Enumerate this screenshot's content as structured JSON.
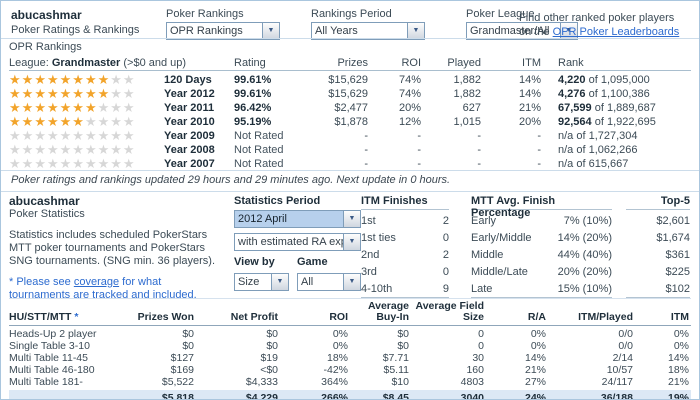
{
  "colors": {
    "star_gold": "#F2A42B",
    "star_empty": "#D7D7D7",
    "link_blue": "#2D6BCF",
    "totals_row_bg": "#DCE8F5",
    "selected_dropdown_bg": "#B7D0EC"
  },
  "header": {
    "username": "abucashmar",
    "subtitle": "Poker Ratings & Rankings",
    "filters": [
      {
        "label": "Poker Rankings",
        "value": "OPR Rankings"
      },
      {
        "label": "Rankings Period",
        "value": "All Years"
      },
      {
        "label": "Poker League",
        "value": "Grandmaster/All"
      }
    ],
    "find_line1": "Find other ranked poker players",
    "find_line2_prefix": "on the",
    "find_link": "OPR Poker Leaderboards"
  },
  "rankings": {
    "title": "OPR Rankings",
    "league_label": "League:",
    "league_name": "Grandmaster",
    "league_range": "(>$0 and up)",
    "columns": {
      "rating": "Rating",
      "prizes": "Prizes",
      "roi": "ROI",
      "played": "Played",
      "itm": "ITM",
      "rank": "Rank"
    },
    "rows": [
      {
        "stars": 8,
        "period": "120 Days",
        "rating": "99.61%",
        "prizes": "$15,629",
        "roi": "74%",
        "played": "1,882",
        "itm": "14%",
        "rank_num": "4,220",
        "rank_rest": "of 1,095,000"
      },
      {
        "stars": 8,
        "period": "Year 2012",
        "rating": "99.61%",
        "prizes": "$15,629",
        "roi": "74%",
        "played": "1,882",
        "itm": "14%",
        "rank_num": "4,276",
        "rank_rest": "of 1,100,386"
      },
      {
        "stars": 7,
        "period": "Year 2011",
        "rating": "96.42%",
        "prizes": "$2,477",
        "roi": "20%",
        "played": "627",
        "itm": "21%",
        "rank_num": "67,599",
        "rank_rest": "of 1,889,687"
      },
      {
        "stars": 6,
        "period": "Year 2010",
        "rating": "95.19%",
        "prizes": "$1,878",
        "roi": "12%",
        "played": "1,015",
        "itm": "20%",
        "rank_num": "92,564",
        "rank_rest": "of 1,922,695"
      },
      {
        "stars": 0,
        "period": "Year 2009",
        "rating": "Not Rated",
        "prizes": "-",
        "roi": "-",
        "played": "-",
        "itm": "-",
        "rank_num": "n/a",
        "rank_rest": "of 1,727,304"
      },
      {
        "stars": 0,
        "period": "Year 2008",
        "rating": "Not Rated",
        "prizes": "-",
        "roi": "-",
        "played": "-",
        "itm": "-",
        "rank_num": "n/a",
        "rank_rest": "of 1,062,266"
      },
      {
        "stars": 0,
        "period": "Year 2007",
        "rating": "Not Rated",
        "prizes": "-",
        "roi": "-",
        "played": "-",
        "itm": "-",
        "rank_num": "n/a",
        "rank_rest": "of 615,667"
      }
    ],
    "update_note": "Poker ratings and rankings updated 29 hours and 29 minutes ago. Next update in 0 hours."
  },
  "statistics": {
    "username": "abucashmar",
    "subtitle": "Poker Statistics",
    "description": "Statistics includes scheduled PokerStars MTT poker tournaments and PokerStars SNG tournaments. (SNG min. 36 players).",
    "note_prefix": "* Please see",
    "note_link": "coverage",
    "note_suffix": "for what tournaments are tracked and included.",
    "period_label": "Statistics Period",
    "period_value": "2012 April",
    "ra_value": "with estimated RA expe",
    "view_by_label": "View by",
    "view_by_value": "Size",
    "game_label": "Game",
    "game_value": "All",
    "itm_finishes": {
      "title": "ITM Finishes",
      "rows": [
        {
          "label": "1st",
          "value": "2"
        },
        {
          "label": "1st ties",
          "value": "0"
        },
        {
          "label": "2nd",
          "value": "2"
        },
        {
          "label": "3rd",
          "value": "0"
        },
        {
          "label": "4-10th",
          "value": "9"
        }
      ]
    },
    "mtt_avg": {
      "title": "MTT Avg. Finish Percentage",
      "rows": [
        {
          "label": "Early",
          "value": "7% (10%)"
        },
        {
          "label": "Early/Middle",
          "value": "14% (20%)"
        },
        {
          "label": "Middle",
          "value": "44% (40%)"
        },
        {
          "label": "Middle/Late",
          "value": "20% (20%)"
        },
        {
          "label": "Late",
          "value": "15% (10%)"
        }
      ]
    },
    "top5": {
      "title": "Top-5",
      "values": [
        "$2,601",
        "$1,674",
        "$361",
        "$225",
        "$102"
      ]
    }
  },
  "results": {
    "columns": {
      "label": "HU/STT/MTT",
      "asterisk": "*",
      "prizes_won": "Prizes Won",
      "net_profit": "Net Profit",
      "roi": "ROI",
      "avg_buyin": "Average Buy-In",
      "avg_field": "Average Field Size",
      "ra": "R/A",
      "itm_played": "ITM/Played",
      "itm": "ITM"
    },
    "rows": [
      {
        "label": "Heads-Up 2 player",
        "prizes_won": "$0",
        "net_profit": "$0",
        "roi": "0%",
        "avg_buyin": "$0",
        "avg_field": "0",
        "ra": "0%",
        "itm_played": "0/0",
        "itm": "0%"
      },
      {
        "label": "Single Table 3-10",
        "prizes_won": "$0",
        "net_profit": "$0",
        "roi": "0%",
        "avg_buyin": "$0",
        "avg_field": "0",
        "ra": "0%",
        "itm_played": "0/0",
        "itm": "0%"
      },
      {
        "label": "Multi Table 11-45",
        "prizes_won": "$127",
        "net_profit": "$19",
        "roi": "18%",
        "avg_buyin": "$7.71",
        "avg_field": "30",
        "ra": "14%",
        "itm_played": "2/14",
        "itm": "14%"
      },
      {
        "label": "Multi Table 46-180",
        "prizes_won": "$169",
        "net_profit": "<$0",
        "roi": "-42%",
        "avg_buyin": "$5.11",
        "avg_field": "160",
        "ra": "21%",
        "itm_played": "10/57",
        "itm": "18%"
      },
      {
        "label": "Multi Table 181-",
        "prizes_won": "$5,522",
        "net_profit": "$4,333",
        "roi": "364%",
        "avg_buyin": "$10",
        "avg_field": "4803",
        "ra": "27%",
        "itm_played": "24/117",
        "itm": "21%"
      }
    ],
    "totals": {
      "prizes_won": "$5,818",
      "net_profit": "$4,229",
      "roi": "266%",
      "avg_buyin": "$8.45",
      "avg_field": "3040",
      "ra": "24%",
      "itm_played": "36/188",
      "itm": "19%"
    }
  }
}
